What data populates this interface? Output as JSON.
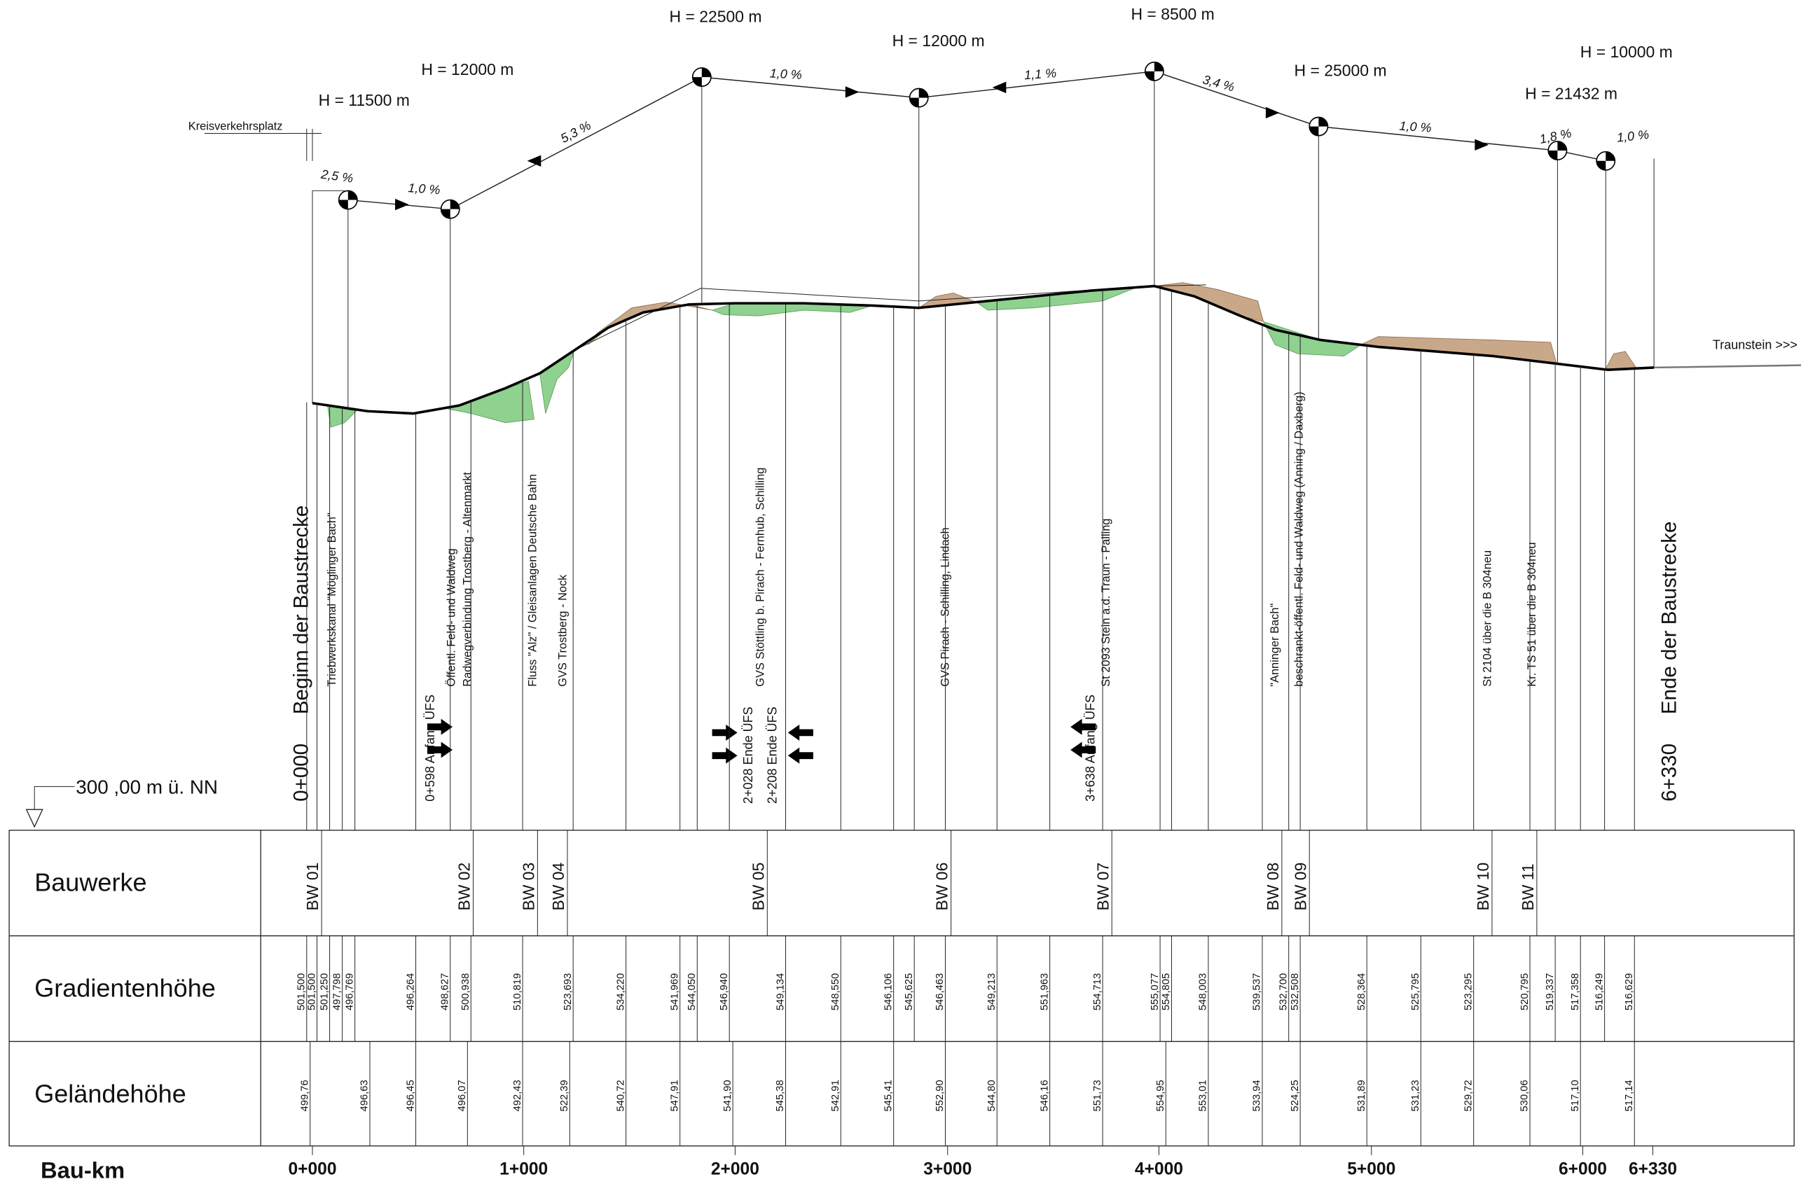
{
  "vertical_curves": [
    "H = 11500 m",
    "H = 12000 m",
    "H = 22500 m",
    "H = 12000 m",
    "H = 8500 m",
    "H = 25000 m",
    "H = 21432 m",
    "H = 10000 m"
  ],
  "grades": [
    "2,5 %",
    "1,0 %",
    "5,3 %",
    "1,0 %",
    "1,1 %",
    "3,4 %",
    "1,0 %",
    "1,8 %",
    "1,0 %"
  ],
  "labels": {
    "roundabout": "Kreisverkehrsplatz",
    "direction": "Traunstein >>>",
    "datum": "300 ,00 m ü. NN"
  },
  "annotations": [
    "0+000",
    "Beginn der Baustrecke",
    "Triebwerkskanal \"Möglinger Bach\"",
    "0+598 Anfang ÜFS",
    "Öffentl. Feld- und Waldweg",
    "Radwegverbindung Trostberg - Altenmarkt",
    "Fluss \"Alz\" / Gleisanlagen Deutsche Bahn",
    "GVS Trostberg - Nock",
    "2+028 Ende ÜFS",
    "GVS Stöttling b. Pirach - Fernhub, Schilling",
    "2+208 Ende ÜFS",
    "GVS Pirach - Schilling, Lindach",
    "3+638 Anfang ÜFS",
    "St 2093 Stein a.d. Traun - Palling",
    "\"Anninger Bach\"",
    "beschrankt-öffentl. Feld- und Waldweg (Anning / Daxberg)",
    "St 2104 über die B 304neu",
    "Kr. TS 51 über die B 304neu",
    "Ende der Baustrecke",
    "6+330"
  ],
  "table": {
    "row_headers": [
      "Bauwerke",
      "Gradientenhöhe",
      "Geländehöhe"
    ],
    "structures": [
      "BW 01",
      "BW 02",
      "BW 03",
      "BW 04",
      "BW 05",
      "BW 06",
      "BW 07",
      "BW 08",
      "BW 09",
      "BW 10",
      "BW 11"
    ],
    "gradient_heights": [
      "501,500",
      "501,500",
      "501,250",
      "497,798",
      "496,769",
      "496,264",
      "498,627",
      "500,938",
      "510,819",
      "523,693",
      "534,220",
      "541,969",
      "544,050",
      "546,940",
      "549,134",
      "548,550",
      "546,106",
      "545,625",
      "546,463",
      "549,213",
      "551,963",
      "554,713",
      "555,077",
      "554,805",
      "548,003",
      "539,537",
      "532,700",
      "532,508",
      "528,364",
      "525,795",
      "523,295",
      "520,795",
      "519,337",
      "517,358",
      "516,249",
      "516,629"
    ],
    "ground_heights": [
      "499,76",
      "496,63",
      "496,45",
      "496,07",
      "492,43",
      "522,39",
      "540,72",
      "547,91",
      "541,90",
      "545,38",
      "542,91",
      "545,41",
      "552,90",
      "544,80",
      "546,16",
      "551,73",
      "554,95",
      "553,01",
      "533,94",
      "524,25",
      "531,89",
      "531,23",
      "529,72",
      "530,06",
      "517,10",
      "517,14"
    ],
    "km_label": "Bau-km",
    "km_ticks": [
      "0+000",
      "1+000",
      "2+000",
      "3+000",
      "4+000",
      "5+000",
      "6+000",
      "6+330"
    ]
  }
}
